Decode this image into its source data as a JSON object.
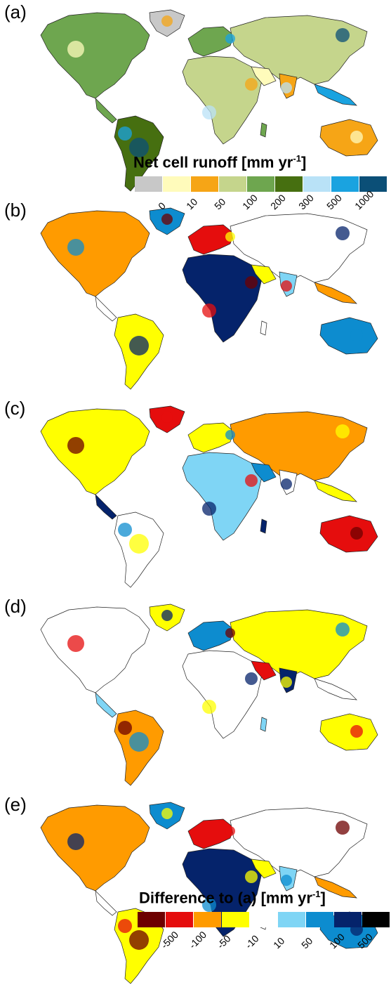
{
  "panels": [
    {
      "label": "(a)",
      "kind": "runoff"
    },
    {
      "label": "(b)",
      "kind": "diff"
    },
    {
      "label": "(c)",
      "kind": "diff"
    },
    {
      "label": "(d)",
      "kind": "diff"
    },
    {
      "label": "(e)",
      "kind": "diff"
    }
  ],
  "legend_runoff": {
    "title_main": "Net cell runoff [mm yr",
    "title_sup": "-1",
    "title_end": "]",
    "ticks": [
      "0",
      "10",
      "50",
      "100",
      "200",
      "300",
      "500",
      "1000"
    ],
    "colors": [
      "#c8c8c8",
      "#fffbbb",
      "#f6a516",
      "#c5d58c",
      "#6ea64f",
      "#466f10",
      "#b9e2f7",
      "#1aa3e0",
      "#0b4f77"
    ]
  },
  "legend_diff": {
    "title_main": "Difference to (a) [mm yr",
    "title_sup": "-1",
    "title_end": "]",
    "ticks": [
      "-500",
      "-100",
      "-50",
      "-10",
      "10",
      "50",
      "100",
      "500"
    ],
    "colors": [
      "#6d0000",
      "#e50d0d",
      "#ff9b00",
      "#ffff00",
      "#ffffff",
      "#7fd5f5",
      "#0d8ccf",
      "#05236b",
      "#000000"
    ]
  }
}
